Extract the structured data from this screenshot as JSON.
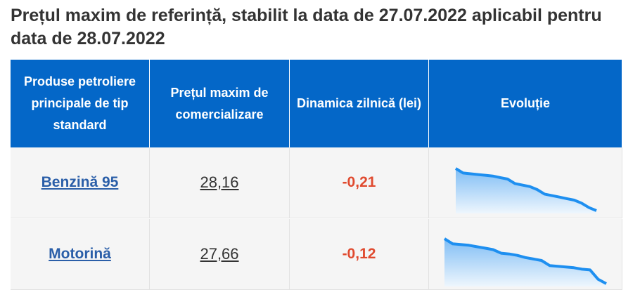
{
  "header": {
    "title": "Prețul maxim de referință, stabilit la data de 27.07.2022 aplicabil pentru data de 28.07.2022"
  },
  "table": {
    "headers": [
      "Produse petroliere principale de tip standard",
      "Prețul maxim de comercializare",
      "Dinamica zilnică (lei)",
      "Evoluție"
    ],
    "rows": [
      {
        "product": "Benzină 95",
        "price": "28,16",
        "change": "-0,21",
        "evolution": [
          60,
          54,
          53,
          52,
          51,
          50,
          48,
          46,
          40,
          38,
          36,
          32,
          26,
          24,
          22,
          20,
          18,
          14,
          8,
          4
        ]
      },
      {
        "product": "Motorină",
        "price": "27,66",
        "change": "-0,12",
        "evolution": [
          64,
          57,
          56,
          55,
          53,
          51,
          49,
          44,
          43,
          41,
          38,
          36,
          34,
          27,
          26,
          25,
          24,
          22,
          21,
          8,
          2
        ]
      }
    ]
  }
}
